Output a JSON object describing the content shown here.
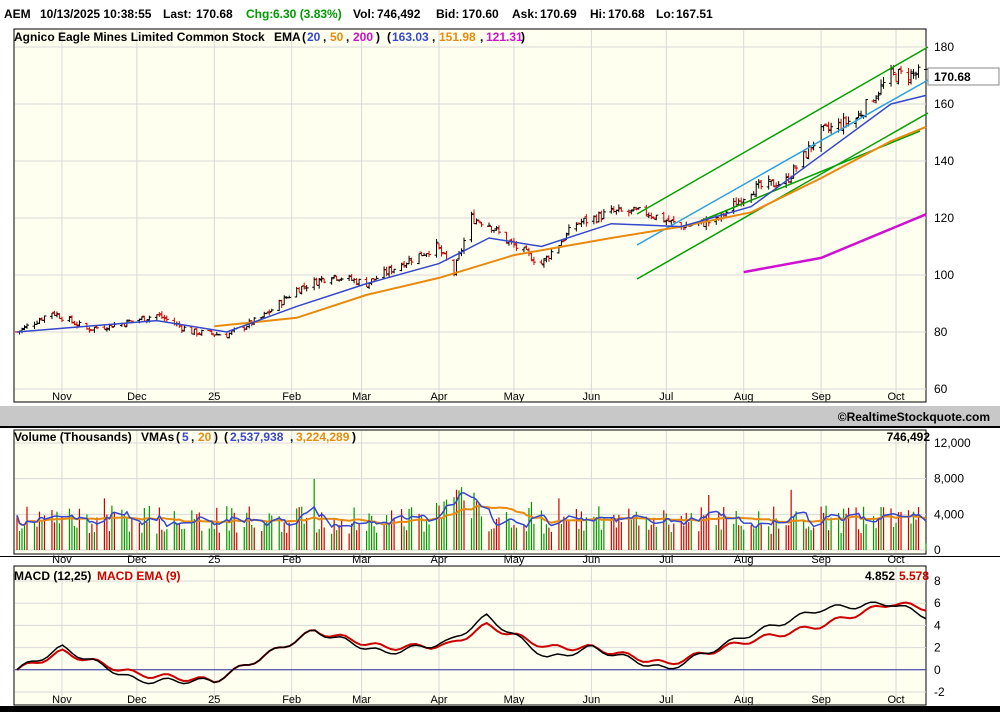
{
  "quote_bar": {
    "symbol": "AEM",
    "datetime": "10/13/2025 10:38:55",
    "last_label": "Last:",
    "last": "170.68",
    "chg_label": "Chg:",
    "chg": "6.30 (3.83%)",
    "vol_label": "Vol:",
    "vol": "746,492",
    "bid_label": "Bid:",
    "bid": "170.60",
    "ask_label": "Ask:",
    "ask": "170.69",
    "hi_label": "Hi:",
    "hi": "170.68",
    "lo_label": "Lo:",
    "lo": "167.51"
  },
  "price_panel": {
    "title": "Agnico Eagle Mines Limited Common Stock",
    "ema_label": "EMA",
    "ema_periods": [
      "20",
      "50",
      "200"
    ],
    "ema_values": [
      "163.03",
      "151.98",
      "121.31"
    ],
    "last_price_tag": "170.68",
    "copyright": "©RealtimeStockquote.com"
  },
  "volume_panel": {
    "title": "Volume (Thousands)",
    "vma_label": "VMAs",
    "vma_periods": [
      "5",
      "20"
    ],
    "vma_values": [
      "2,537,938",
      "3,224,289"
    ],
    "last_volume": "746,492"
  },
  "macd_panel": {
    "title": "MACD (12,25)",
    "signal_title": "MACD EMA (9)",
    "macd_value": "4.852",
    "signal_value": "5.578"
  },
  "colors": {
    "background": "#fffff0",
    "ema20": "#3548cc",
    "ema50": "#e88a10",
    "ema200": "#d010d0",
    "channel": "#00a000",
    "trend": "#2aa0e0",
    "up_bar": "#000000",
    "down_bar": "#cc0000",
    "vol_up": "#009900",
    "vol_down": "#cc0000",
    "macd": "#000000",
    "signal": "#cc0000",
    "zero_line": "#3030a0"
  },
  "chart_data": [
    {
      "type": "line",
      "panel": "price",
      "title": "Agnico Eagle Mines Limited Common Stock",
      "x_ticks": [
        "Nov",
        "Dec",
        "25",
        "Feb",
        "Mar",
        "Apr",
        "May",
        "Jun",
        "Jul",
        "Aug",
        "Sep",
        "Oct"
      ],
      "y_ticks": [
        60,
        80,
        100,
        120,
        140,
        160,
        180
      ],
      "ylim": [
        60,
        180
      ],
      "grid": true,
      "price_close_weekly": {
        "x": [
          "Oct 14",
          "Oct 28",
          "Nov 11",
          "Nov 25",
          "Dec 9",
          "Dec 23",
          "Jan 6",
          "Jan 20",
          "Feb 3",
          "Feb 17",
          "Mar 3",
          "Mar 17",
          "Mar 31",
          "Apr 7",
          "Apr 14",
          "Apr 21",
          "Apr 28",
          "May 12",
          "May 26",
          "Jun 9",
          "Jun 23",
          "Jul 7",
          "Jul 21",
          "Aug 4",
          "Aug 18",
          "Sep 1",
          "Sep 15",
          "Sep 29",
          "Oct 13"
        ],
        "values": [
          80,
          87,
          81,
          83,
          86,
          80,
          79,
          85,
          95,
          100,
          97,
          104,
          110,
          101,
          120,
          118,
          112,
          104,
          118,
          122,
          122,
          117,
          119,
          130,
          133,
          150,
          155,
          170,
          170.68
        ]
      },
      "series": [
        {
          "name": "EMA 20",
          "last": 163.03,
          "x": [
            "Oct 14",
            "Nov 11",
            "Dec 9",
            "Jan 6",
            "Feb 3",
            "Mar 3",
            "Apr 1",
            "Apr 21",
            "May 12",
            "Jun 9",
            "Jul 7",
            "Aug 4",
            "Sep 1",
            "Sep 29",
            "Oct 13"
          ],
          "values": [
            80,
            82,
            84,
            80,
            89,
            97,
            104,
            113,
            110,
            118,
            117,
            124,
            142,
            160,
            163.03
          ]
        },
        {
          "name": "EMA 50",
          "last": 151.98,
          "x": [
            "Jan 1",
            "Feb 3",
            "Mar 3",
            "Apr 1",
            "May 1",
            "Jun 9",
            "Jul 7",
            "Aug 4",
            "Sep 1",
            "Sep 29",
            "Oct 13"
          ],
          "values": [
            82,
            85,
            93,
            99,
            107,
            113,
            117,
            122,
            134,
            147,
            151.98
          ]
        },
        {
          "name": "EMA 200",
          "last": 121.31,
          "x": [
            "Aug 1",
            "Sep 1",
            "Oct 13"
          ],
          "values": [
            101,
            106,
            121.31
          ]
        }
      ]
    },
    {
      "type": "bar",
      "panel": "volume",
      "title": "Volume (Thousands)",
      "y_ticks": [
        0,
        4000,
        8000,
        12000
      ],
      "ylim": [
        0,
        12000
      ],
      "series": [
        {
          "name": "VMA 5",
          "last": 2537.938
        },
        {
          "name": "VMA 20",
          "last": 3224.289
        }
      ],
      "last_volume": 746.492
    },
    {
      "type": "line",
      "panel": "macd",
      "title": "MACD (12,25)",
      "y_ticks": [
        -2,
        0,
        2,
        4,
        6,
        8
      ],
      "ylim": [
        -2,
        8
      ],
      "series": [
        {
          "name": "MACD (12,25)",
          "last": 4.852,
          "x": [
            "Oct 14",
            "Nov 1",
            "Dec 1",
            "Jan 1",
            "Feb 10",
            "Mar 10",
            "Apr 5",
            "Apr 20",
            "May 15",
            "Jun 1",
            "Jul 1",
            "Aug 1",
            "Sep 1",
            "Sep 29",
            "Oct 13"
          ],
          "values": [
            0,
            2,
            -1,
            -1,
            3.5,
            1.5,
            2.5,
            4.8,
            1,
            2,
            0,
            3,
            5.5,
            6,
            4.852
          ]
        },
        {
          "name": "MACD EMA (9)",
          "last": 5.578,
          "x": [
            "Oct 14",
            "Nov 1",
            "Dec 1",
            "Jan 1",
            "Feb 10",
            "Mar 10",
            "Apr 5",
            "Apr 20",
            "May 15",
            "Jun 1",
            "Jul 1",
            "Aug 1",
            "Sep 1",
            "Sep 29",
            "Oct 13"
          ],
          "values": [
            0,
            1.6,
            -0.4,
            -1,
            3.5,
            2,
            2.2,
            4,
            2,
            2,
            0.5,
            2.5,
            4,
            6,
            5.578
          ]
        }
      ]
    }
  ]
}
